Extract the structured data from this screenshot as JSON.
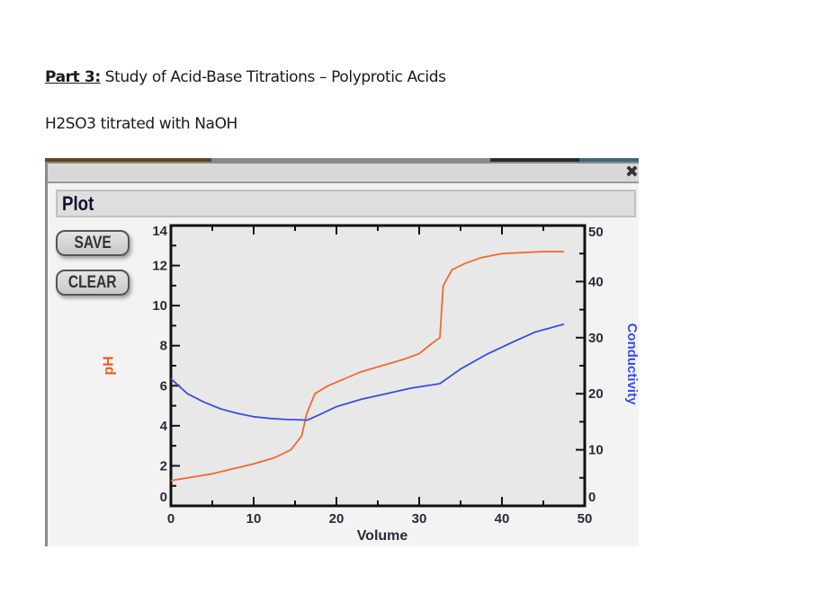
{
  "document": {
    "heading_part": "Part 3:",
    "heading_text": " Study of Acid-Base Titrations – Polyprotic Acids",
    "subheading": "H2SO3 titrated with NaOH"
  },
  "window": {
    "close_icon": "✖",
    "panel_title": "Plot",
    "buttons": {
      "save": "SAVE",
      "clear": "CLEAR"
    }
  },
  "colors": {
    "ph_series": "#f06a2a",
    "conductivity_series": "#3a4ee0",
    "plot_bg": "#e8e8e8",
    "axis": "#111111",
    "ph_label": "#f05a1e",
    "conductivity_label": "#3a4ee0"
  },
  "chart_data": {
    "type": "line",
    "title": "Plot",
    "xlabel": "Volume",
    "ylabel": "pH",
    "y2label": "Conductivity",
    "xlim": [
      0,
      50
    ],
    "ylim": [
      0,
      14
    ],
    "y2lim": [
      0,
      50
    ],
    "x_ticks": [
      0,
      10,
      20,
      30,
      40,
      50
    ],
    "y_ticks": [
      0,
      2,
      4,
      6,
      8,
      10,
      12,
      14
    ],
    "y2_ticks": [
      0,
      10,
      20,
      30,
      40,
      50
    ],
    "grid": false,
    "legend": null,
    "series": [
      {
        "name": "pH",
        "axis": "left",
        "x": [
          0,
          5,
          10,
          12.5,
          14.5,
          15.8,
          16.4,
          17.4,
          19,
          23,
          28,
          30,
          31.5,
          32.5,
          32.7,
          32.9,
          33.3,
          34,
          35.5,
          37.5,
          40,
          45,
          47.5
        ],
        "values": [
          1.26,
          1.6,
          2.1,
          2.4,
          2.8,
          3.5,
          4.6,
          5.6,
          6.0,
          6.7,
          7.3,
          7.6,
          8.1,
          8.4,
          9.7,
          11.0,
          11.3,
          11.8,
          12.1,
          12.4,
          12.6,
          12.7,
          12.7
        ]
      },
      {
        "name": "Conductivity",
        "axis": "right",
        "x": [
          0,
          2,
          4,
          6,
          8,
          10,
          12,
          14,
          16.5,
          18,
          20,
          23,
          26,
          29,
          32.5,
          35,
          38,
          41,
          44,
          47.5
        ],
        "values": [
          22.7,
          20.0,
          18.5,
          17.3,
          16.5,
          15.9,
          15.6,
          15.4,
          15.3,
          16.3,
          17.7,
          19.0,
          20.0,
          21.0,
          21.8,
          24.4,
          26.9,
          29.0,
          31.0,
          32.4
        ]
      }
    ]
  }
}
